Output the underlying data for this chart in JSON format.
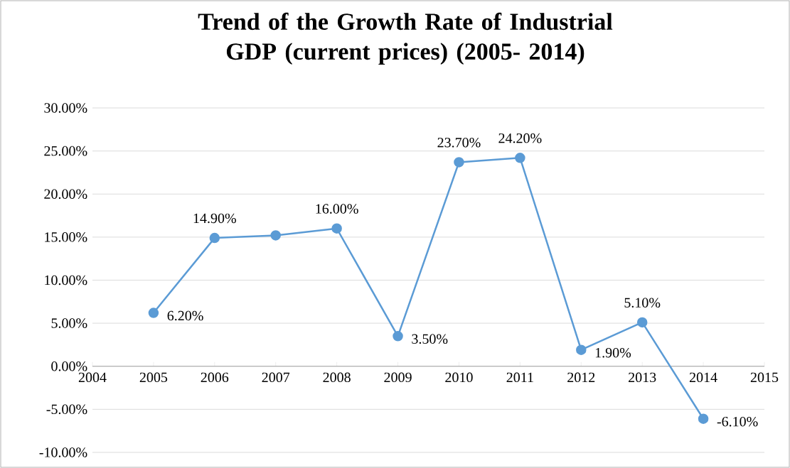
{
  "chart_data": {
    "type": "line",
    "title": "Trend of the Growth Rate of Industrial GDP (current prices) (2005- 2014)",
    "x": [
      2005,
      2006,
      2007,
      2008,
      2009,
      2010,
      2011,
      2012,
      2013,
      2014
    ],
    "values": [
      6.2,
      14.9,
      15.2,
      16.0,
      3.5,
      23.7,
      24.2,
      1.9,
      5.1,
      -6.1
    ],
    "value_labels": [
      "6.20%",
      "14.90%",
      null,
      "16.00%",
      "3.50%",
      "23.70%",
      "24.20%",
      "1.90%",
      "5.10%",
      "-6.10%"
    ],
    "color": "#5b9bd5",
    "xlim": [
      2004,
      2015
    ],
    "xticks": [
      2004,
      2005,
      2006,
      2007,
      2008,
      2009,
      2010,
      2011,
      2012,
      2013,
      2014,
      2015
    ],
    "ylim": [
      -10,
      30
    ],
    "yticks": [
      {
        "value": -10,
        "label": "-10.00%"
      },
      {
        "value": -5,
        "label": "-5.00%"
      },
      {
        "value": 0,
        "label": "0.00%"
      },
      {
        "value": 5,
        "label": "5.00%"
      },
      {
        "value": 10,
        "label": "10.00%"
      },
      {
        "value": 15,
        "label": "15.00%"
      },
      {
        "value": 20,
        "label": "20.00%"
      },
      {
        "value": 25,
        "label": "25.00%"
      },
      {
        "value": 30,
        "label": "30.00%"
      }
    ],
    "grid": "y",
    "marker": "circle",
    "line_style": "solid"
  }
}
